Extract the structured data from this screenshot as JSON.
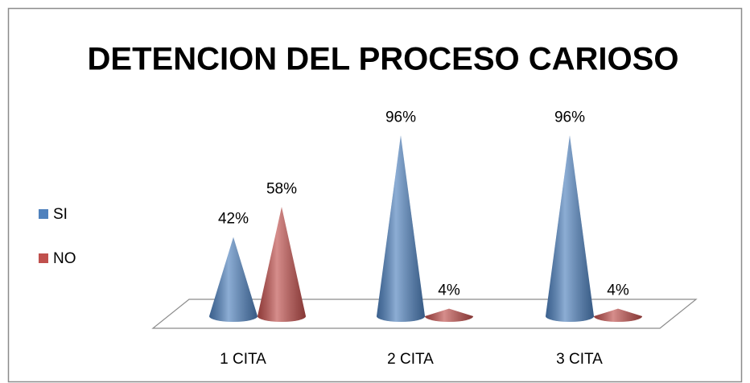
{
  "chart_data": {
    "type": "cone",
    "title": "DETENCION DEL PROCESO CARIOSO",
    "categories": [
      "1 CITA",
      "2 CITA",
      "3 CITA"
    ],
    "series": [
      {
        "name": "SI",
        "color": "#4f81bd",
        "values": [
          42,
          96,
          96
        ],
        "value_labels": [
          "42%",
          "96%",
          "96%"
        ]
      },
      {
        "name": "NO",
        "color": "#c0504d",
        "values": [
          58,
          4,
          4
        ],
        "value_labels": [
          "58%",
          "4%",
          "4%"
        ]
      }
    ],
    "legend": "left"
  }
}
